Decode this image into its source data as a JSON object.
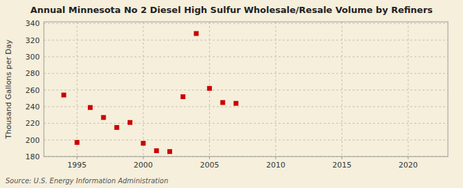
{
  "chart_data": {
    "type": "scatter",
    "title": "Annual Minnesota No 2 Diesel High Sulfur Wholesale/Resale Volume by Refiners",
    "ylabel": "Thousand Gallons per Day",
    "source": "Source: U.S. Energy Information Administration",
    "x": [
      1994,
      1995,
      1996,
      1997,
      1998,
      1999,
      2000,
      2001,
      2002,
      2003,
      2004,
      2005,
      2006,
      2007
    ],
    "y": [
      254,
      197,
      239,
      227,
      215,
      221,
      196,
      187,
      186,
      252,
      328,
      262,
      245,
      244
    ],
    "xlim": [
      1992.5,
      2023
    ],
    "ylim": [
      180,
      342
    ],
    "xticks": [
      1995,
      2000,
      2005,
      2010,
      2015,
      2020
    ],
    "yticks": [
      180,
      200,
      220,
      240,
      260,
      280,
      300,
      320,
      340
    ],
    "color": "#cc0000",
    "marker": "square",
    "grid": true
  }
}
